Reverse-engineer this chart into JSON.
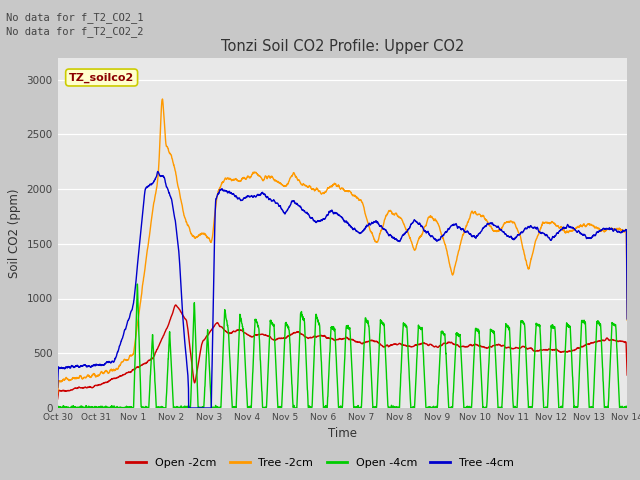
{
  "title": "Tonzi Soil CO2 Profile: Upper CO2",
  "xlabel": "Time",
  "ylabel": "Soil CO2 (ppm)",
  "ylim": [
    0,
    3200
  ],
  "yticks": [
    0,
    500,
    1000,
    1500,
    2000,
    2500,
    3000
  ],
  "no_data_text": [
    "No data for f_T2_CO2_1",
    "No data for f_T2_CO2_2"
  ],
  "site_label": "TZ_soilco2",
  "fig_bg_color": "#c8c8c8",
  "plot_bg_color": "#e8e8e8",
  "grid_color": "#ffffff",
  "legend_entries": [
    "Open -2cm",
    "Tree -2cm",
    "Open -4cm",
    "Tree -4cm"
  ],
  "legend_colors": [
    "#cc0000",
    "#ff9900",
    "#00cc00",
    "#0000cc"
  ],
  "xticklabels": [
    "Oct 30",
    "Oct 31",
    "Nov 1",
    "Nov 2",
    "Nov 3",
    "Nov 4",
    "Nov 5",
    "Nov 6",
    "Nov 7",
    "Nov 8",
    "Nov 9",
    "Nov 10",
    "Nov 11",
    "Nov 12",
    "Nov 13",
    "Nov 14"
  ],
  "xtick_positions": [
    0,
    1,
    2,
    3,
    4,
    5,
    6,
    7,
    8,
    9,
    10,
    11,
    12,
    13,
    14,
    15
  ]
}
